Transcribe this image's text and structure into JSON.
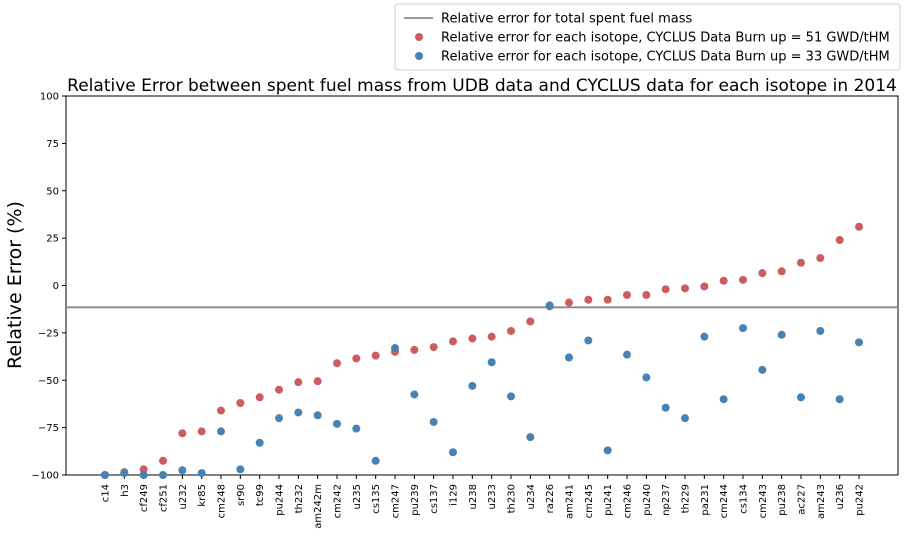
{
  "chart_data": {
    "type": "scatter",
    "title": "Relative Error between spent fuel mass from UDB data and CYCLUS data for each isotope in 2014",
    "xlabel": "",
    "ylabel": "Relative Error (%)",
    "ylim": [
      -100,
      100
    ],
    "yticks": [
      -100,
      -75,
      -50,
      -25,
      0,
      25,
      50,
      75,
      100
    ],
    "grid": false,
    "legend_position": "top-right",
    "categories": [
      "c14",
      "h3",
      "cf249",
      "cf251",
      "u232",
      "kr85",
      "cm248",
      "sr90",
      "tc99",
      "pu244",
      "th232",
      "am242m",
      "cm242",
      "u235",
      "cs135",
      "cm247",
      "pu239",
      "cs137",
      "i129",
      "u238",
      "u233",
      "th230",
      "u234",
      "ra226",
      "am241",
      "cm245",
      "pu241",
      "cm246",
      "pu240",
      "np237",
      "th229",
      "pa231",
      "cm244",
      "cs134",
      "cm243",
      "pu238",
      "ac227",
      "am243",
      "u236",
      "pu242"
    ],
    "reference_line": {
      "name": "Relative error for total spent fuel mass",
      "y": -11.5,
      "color": "#888888"
    },
    "series": [
      {
        "name": "Relative error for each isotope, CYCLUS Data Burn up = 51 GWD/tHM",
        "color": "#cd5c5c",
        "values": [
          -100,
          -98.5,
          -97,
          -92.5,
          -78,
          -77,
          -66,
          -62,
          -59,
          -55,
          -51,
          -50.5,
          -41,
          -38.5,
          -37,
          -35,
          -34,
          -32.5,
          -29.5,
          -28,
          -27,
          -24,
          -19,
          -11,
          -9,
          -7.5,
          -7.5,
          -5,
          -5,
          -2,
          -1.5,
          -0.5,
          2.5,
          3,
          6.5,
          7.5,
          12,
          14.5,
          24,
          31
        ]
      },
      {
        "name": "Relative error for each isotope, CYCLUS Data Burn up = 33 GWD/tHM",
        "color": "#4682b4",
        "values": [
          -100,
          -99,
          -100,
          -100,
          -97.5,
          -99,
          -77,
          -97,
          -83,
          -70,
          -67,
          -68.5,
          -73,
          -75.5,
          -92.5,
          -33,
          -57.5,
          -72,
          -88,
          -53,
          -40.5,
          -58.5,
          -80,
          -10.5,
          -38,
          -29,
          -87,
          -36.5,
          -48.5,
          -64.5,
          -70,
          -27,
          -60,
          -22.5,
          -44.5,
          -26,
          -59,
          -24,
          -60,
          -30
        ]
      }
    ]
  }
}
